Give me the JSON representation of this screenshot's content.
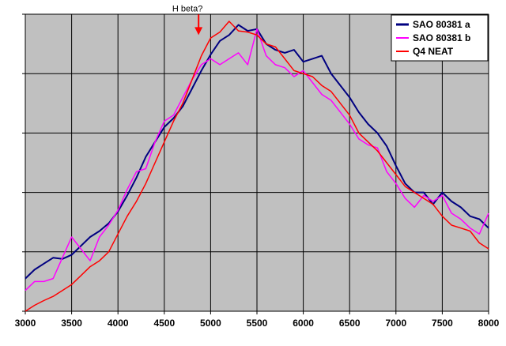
{
  "chart_data": {
    "type": "line",
    "title": "",
    "xlabel": "",
    "ylabel": "",
    "xlim": [
      3000,
      8000
    ],
    "ylim": [
      0,
      5
    ],
    "x_ticks": [
      "3000",
      "3500",
      "4000",
      "4500",
      "5000",
      "5500",
      "6000",
      "6500",
      "7000",
      "7500",
      "8000"
    ],
    "y_tick_labels_shown": false,
    "grid": true,
    "plot_background": "#c0c0c0",
    "legend_position": "top-right",
    "annotation": {
      "text": "H beta?",
      "x": 4870,
      "y": 4.65,
      "arrow_color": "#ff0000"
    },
    "series": [
      {
        "name": "SAO 80381 a",
        "color": "#000080",
        "x": [
          3000,
          3100,
          3200,
          3300,
          3400,
          3500,
          3600,
          3700,
          3800,
          3900,
          4000,
          4100,
          4200,
          4300,
          4400,
          4500,
          4600,
          4700,
          4800,
          4900,
          5000,
          5100,
          5200,
          5300,
          5400,
          5500,
          5600,
          5700,
          5800,
          5900,
          6000,
          6100,
          6200,
          6300,
          6400,
          6500,
          6600,
          6700,
          6800,
          6900,
          7000,
          7100,
          7200,
          7300,
          7400,
          7500,
          7600,
          7700,
          7800,
          7900,
          8000
        ],
        "y": [
          0.55,
          0.7,
          0.8,
          0.9,
          0.88,
          0.95,
          1.1,
          1.25,
          1.35,
          1.48,
          1.68,
          1.95,
          2.25,
          2.6,
          2.85,
          3.1,
          3.25,
          3.45,
          3.75,
          4.05,
          4.32,
          4.55,
          4.65,
          4.82,
          4.72,
          4.75,
          4.5,
          4.4,
          4.35,
          4.4,
          4.2,
          4.25,
          4.3,
          4.0,
          3.8,
          3.6,
          3.35,
          3.15,
          3.0,
          2.78,
          2.45,
          2.15,
          2.0,
          2.0,
          1.8,
          2.0,
          1.85,
          1.75,
          1.6,
          1.55,
          1.4
        ]
      },
      {
        "name": "SAO 80381 b",
        "color": "#ff00ff",
        "x": [
          3000,
          3100,
          3200,
          3300,
          3400,
          3500,
          3600,
          3700,
          3800,
          3900,
          4000,
          4100,
          4200,
          4300,
          4400,
          4500,
          4600,
          4700,
          4800,
          4900,
          5000,
          5100,
          5200,
          5300,
          5400,
          5500,
          5600,
          5700,
          5800,
          5900,
          6000,
          6100,
          6200,
          6300,
          6400,
          6500,
          6600,
          6700,
          6800,
          6900,
          7000,
          7100,
          7200,
          7300,
          7400,
          7500,
          7600,
          7700,
          7800,
          7900,
          8000
        ],
        "y": [
          0.35,
          0.5,
          0.5,
          0.55,
          0.9,
          1.25,
          1.05,
          0.85,
          1.25,
          1.45,
          1.7,
          2.05,
          2.35,
          2.4,
          2.85,
          3.2,
          3.3,
          3.6,
          3.9,
          4.15,
          4.25,
          4.15,
          4.25,
          4.35,
          4.15,
          4.75,
          4.3,
          4.15,
          4.1,
          3.95,
          4.05,
          3.85,
          3.65,
          3.55,
          3.35,
          3.15,
          2.9,
          2.8,
          2.75,
          2.35,
          2.15,
          1.9,
          1.75,
          1.95,
          1.85,
          1.95,
          1.65,
          1.55,
          1.4,
          1.3,
          1.65
        ]
      },
      {
        "name": "Q4 NEAT",
        "color": "#ff0000",
        "x": [
          3000,
          3100,
          3200,
          3300,
          3400,
          3500,
          3600,
          3700,
          3800,
          3900,
          4000,
          4100,
          4200,
          4300,
          4400,
          4500,
          4600,
          4700,
          4800,
          4900,
          5000,
          5100,
          5200,
          5300,
          5400,
          5500,
          5600,
          5700,
          5800,
          5900,
          6000,
          6100,
          6200,
          6300,
          6400,
          6500,
          6600,
          6700,
          6800,
          6900,
          7000,
          7100,
          7200,
          7300,
          7400,
          7500,
          7600,
          7700,
          7800,
          7900,
          8000
        ],
        "y": [
          0.0,
          0.1,
          0.18,
          0.25,
          0.35,
          0.45,
          0.6,
          0.75,
          0.85,
          1.0,
          1.3,
          1.6,
          1.85,
          2.15,
          2.5,
          2.85,
          3.2,
          3.5,
          3.9,
          4.3,
          4.6,
          4.7,
          4.88,
          4.72,
          4.7,
          4.65,
          4.5,
          4.45,
          4.25,
          4.05,
          4.0,
          3.95,
          3.8,
          3.7,
          3.5,
          3.3,
          3.0,
          2.85,
          2.7,
          2.5,
          2.3,
          2.1,
          2.0,
          1.9,
          1.8,
          1.6,
          1.45,
          1.4,
          1.35,
          1.15,
          1.05
        ]
      }
    ]
  }
}
